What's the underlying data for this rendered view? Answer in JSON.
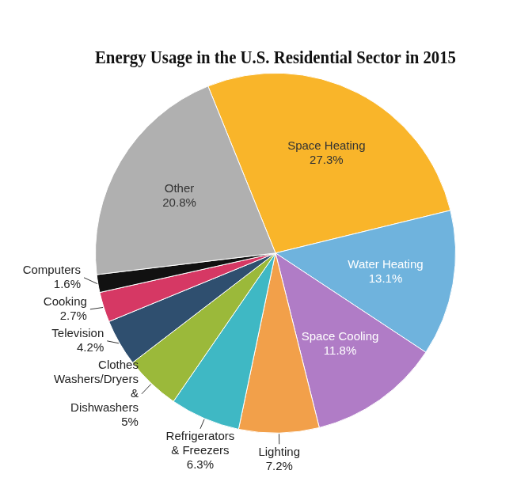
{
  "chart_data": {
    "type": "pie",
    "title": "Energy Usage in the U.S. Residential Sector in 2015",
    "categories": [
      "Space Heating",
      "Water Heating",
      "Space Cooling",
      "Lighting",
      "Refrigerators & Freezers",
      "Clothes Washers/Dryers & Dishwashers",
      "Television",
      "Cooking",
      "Computers",
      "Other"
    ],
    "values": [
      27.3,
      13.1,
      11.8,
      7.2,
      6.3,
      5,
      4.2,
      2.7,
      1.6,
      20.8
    ],
    "value_labels": [
      "27.3%",
      "13.1%",
      "11.8%",
      "7.2%",
      "6.3%",
      "5%",
      "4.2%",
      "2.7%",
      "1.6%",
      "20.8%"
    ],
    "colors": [
      "#f9b52a",
      "#6fb3dd",
      "#b07cc6",
      "#f2a04a",
      "#3fb8c4",
      "#9bb93a",
      "#2f4f6f",
      "#d63864",
      "#111111",
      "#b0b0b0"
    ],
    "data_labels": true
  }
}
